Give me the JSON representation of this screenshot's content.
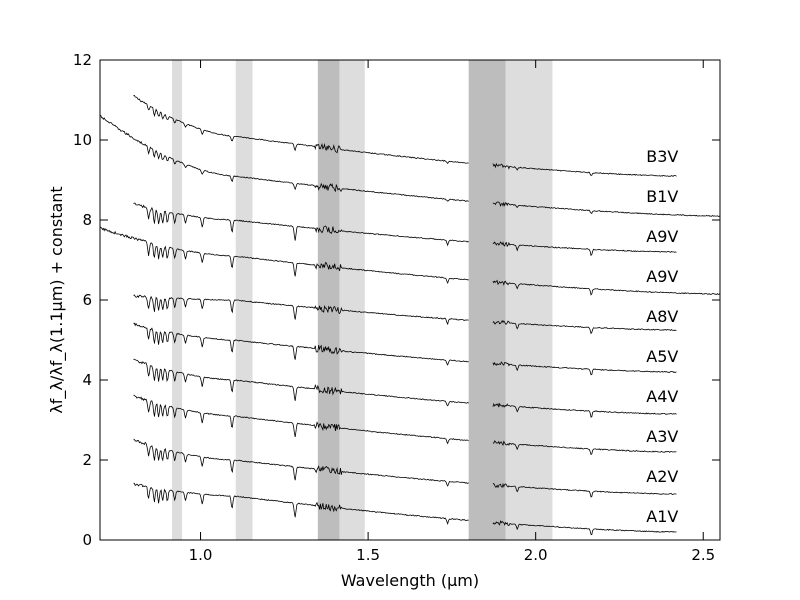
{
  "chart_data": {
    "type": "line",
    "title": "",
    "xlabel": "Wavelength (μm)",
    "ylabel": "λf_λ/λf_λ(1.1μm) + constant",
    "xlim": [
      0.7,
      2.55
    ],
    "ylim": [
      0,
      12
    ],
    "x_ticks": [
      1.0,
      1.5,
      2.0,
      2.5
    ],
    "x_tick_labels": [
      "1.0",
      "1.5",
      "2.0",
      "2.5"
    ],
    "y_ticks": [
      0,
      2,
      4,
      6,
      8,
      10,
      12
    ],
    "y_tick_labels": [
      "0",
      "2",
      "4",
      "6",
      "8",
      "10",
      "12"
    ],
    "grid": false,
    "legend": "none",
    "shaded_regions": [
      {
        "x0": 0.915,
        "x1": 0.945,
        "shade": "light"
      },
      {
        "x0": 1.105,
        "x1": 1.155,
        "shade": "light"
      },
      {
        "x0": 1.35,
        "x1": 1.415,
        "shade": "dark"
      },
      {
        "x0": 1.415,
        "x1": 1.49,
        "shade": "light"
      },
      {
        "x0": 1.8,
        "x1": 1.91,
        "shade": "dark"
      },
      {
        "x0": 1.91,
        "x1": 2.05,
        "shade": "light"
      }
    ],
    "colors": {
      "line": "#000000",
      "shade_light": "#dddddd",
      "shade_dark": "#bdbdbd"
    },
    "series": [
      {
        "name": "B3V",
        "x_start": 0.8,
        "x_end": 2.42,
        "y_start": 11.1,
        "y_at_1_1": 10.1,
        "y_end": 9.1
      },
      {
        "name": "B1V",
        "x_start": 0.7,
        "x_end": 2.55,
        "y_start": 10.6,
        "y_at_1_1": 9.1,
        "y_end": 8.1
      },
      {
        "name": "A9V",
        "x_start": 0.8,
        "x_end": 2.42,
        "y_start": 8.4,
        "y_at_1_1": 8.0,
        "y_end": 7.2
      },
      {
        "name": "A9V",
        "x_start": 0.7,
        "x_end": 2.55,
        "y_start": 7.8,
        "y_at_1_1": 7.1,
        "y_end": 6.15
      },
      {
        "name": "A8V",
        "x_start": 0.8,
        "x_end": 2.42,
        "y_start": 6.1,
        "y_at_1_1": 6.0,
        "y_end": 5.25
      },
      {
        "name": "A5V",
        "x_start": 0.8,
        "x_end": 2.42,
        "y_start": 5.4,
        "y_at_1_1": 5.0,
        "y_end": 4.2
      },
      {
        "name": "A4V",
        "x_start": 0.8,
        "x_end": 2.42,
        "y_start": 4.5,
        "y_at_1_1": 4.0,
        "y_end": 3.15
      },
      {
        "name": "A3V",
        "x_start": 0.8,
        "x_end": 2.42,
        "y_start": 3.6,
        "y_at_1_1": 3.1,
        "y_end": 2.2
      },
      {
        "name": "A2V",
        "x_start": 0.8,
        "x_end": 2.42,
        "y_start": 2.5,
        "y_at_1_1": 2.0,
        "y_end": 1.15
      },
      {
        "name": "A1V",
        "x_start": 0.8,
        "x_end": 2.42,
        "y_start": 1.4,
        "y_at_1_1": 1.1,
        "y_end": 0.2
      }
    ],
    "series_label_x": 2.33,
    "series_label_y": [
      9.6,
      8.6,
      7.6,
      6.6,
      5.6,
      4.6,
      3.6,
      2.6,
      1.6,
      0.6
    ]
  }
}
